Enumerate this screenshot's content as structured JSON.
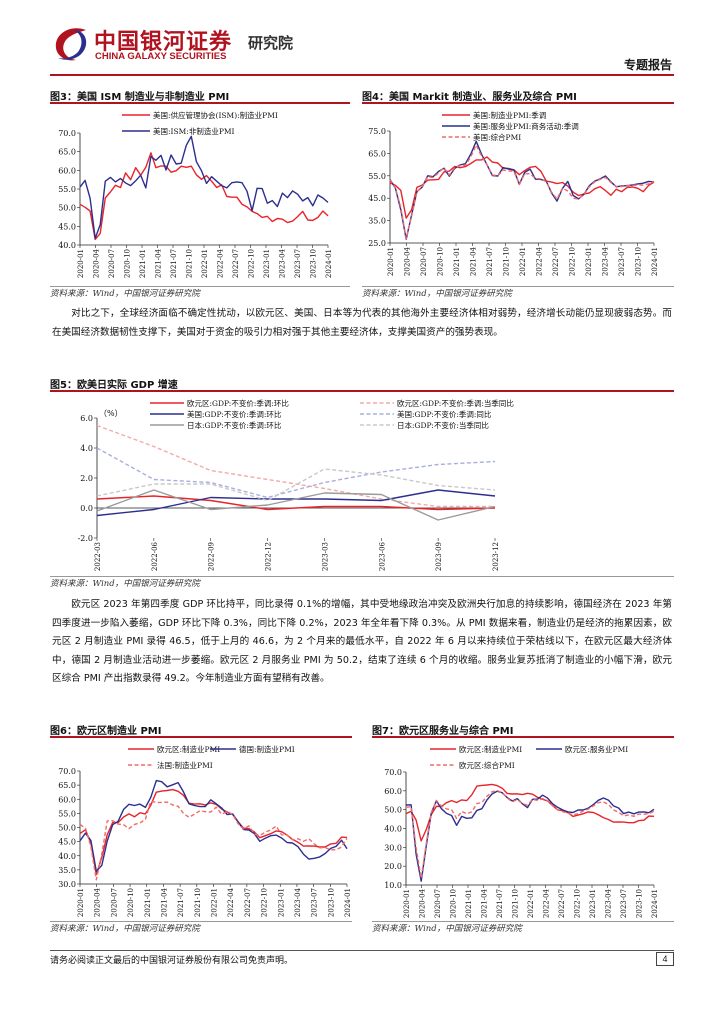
{
  "header": {
    "logo_cn": "中国银河证券",
    "logo_en": "CHINA GALAXY SECURITIES",
    "institute": "研究院",
    "report_type": "专题报告",
    "colors": {
      "brand": "#b0131f"
    }
  },
  "source_text": "资料来源：Wind，中国银河证券研究院",
  "paragraph1": "对比之下，全球经济面临不确定性扰动，以欧元区、美国、日本等为代表的其他海外主要经济体相对弱势，经济增长动能仍显现疲弱态势。而在美国经济数据韧性支撑下，美国对于资金的吸引力相对强于其他主要经济体，支撑美国资产的强势表现。",
  "paragraph2": "欧元区 2023 年第四季度 GDP 环比持平，同比录得 0.1%的增幅，其中受地缘政治冲突及欧洲央行加息的持续影响，德国经济在 2023 年第四季度进一步陷入萎缩，GDP 环比下降 0.3%，同比下降 0.2%，2023 年全年看下降 0.3%。从 PMI 数据来看，制造业仍是经济的拖累因素，欧元区 2 月制造业 PMI 录得 46.5，低于上月的 46.6，为 2 个月来的最低水平，自 2022 年 6 月以来持续位于荣枯线以下，在欧元区最大经济体中，德国 2 月制造业活动进一步萎缩。欧元区 2 月服务业 PMI 为 50.2，结束了连续 6 个月的收缩。服务业复苏抵消了制造业的小幅下滑，欧元区综合 PMI 产出指数录得 49.2。今年制造业方面有望稍有改善。",
  "footer": {
    "disclaimer": "请务必阅读正文最后的中国银河证券股份有限公司免责声明。",
    "page": "4"
  },
  "chart_data": [
    {
      "id": "fig3",
      "type": "line",
      "title": "图3：美国 ISM 制造业与非制造业 PMI",
      "ylim": [
        40,
        70
      ],
      "yticks": [
        "40.0",
        "45.0",
        "50.0",
        "55.0",
        "60.0",
        "65.0",
        "70.0"
      ],
      "xticks": [
        "2020-01",
        "2020-04",
        "2020-07",
        "2020-10",
        "2021-01",
        "2021-04",
        "2021-07",
        "2021-10",
        "2022-01",
        "2022-04",
        "2022-07",
        "2022-10",
        "2023-01",
        "2023-04",
        "2023-07",
        "2023-10",
        "2024-01"
      ],
      "n": 50,
      "series": [
        {
          "name": "美国:供应管理协会(ISM):制造业PMI",
          "color": "#e8242b",
          "dash": false,
          "values": [
            50.9,
            50.1,
            49.1,
            41.5,
            43.1,
            52.6,
            54.2,
            56.0,
            55.4,
            59.3,
            57.5,
            60.7,
            58.7,
            60.8,
            64.7,
            60.7,
            61.2,
            61.1,
            59.5,
            59.9,
            61.1,
            60.8,
            61.1,
            58.8,
            57.6,
            58.6,
            57.1,
            55.4,
            56.1,
            53.0,
            52.8,
            52.8,
            50.9,
            50.2,
            49.0,
            48.4,
            47.4,
            47.7,
            46.3,
            47.1,
            46.9,
            46.0,
            46.4,
            47.6,
            49.0,
            46.7,
            46.6,
            47.4,
            49.1,
            47.8
          ]
        },
        {
          "name": "美国:ISM:非制造业PMI",
          "color": "#2b2f8f",
          "dash": false,
          "values": [
            55.5,
            57.3,
            52.5,
            41.8,
            45.4,
            57.1,
            58.1,
            56.9,
            57.8,
            56.6,
            55.9,
            57.2,
            58.7,
            55.3,
            63.7,
            62.7,
            64.0,
            60.1,
            64.1,
            61.7,
            61.9,
            66.7,
            69.1,
            62.3,
            59.9,
            56.5,
            58.3,
            57.1,
            55.9,
            55.3,
            56.7,
            56.9,
            56.7,
            54.4,
            49.2,
            55.2,
            55.1,
            51.2,
            51.9,
            50.3,
            53.9,
            52.7,
            54.5,
            53.6,
            51.8,
            52.7,
            50.5,
            53.4,
            52.6,
            51.4
          ]
        }
      ]
    },
    {
      "id": "fig4",
      "type": "line",
      "title": "图4：美国 Markit 制造业、服务业及综合 PMI",
      "ylim": [
        25,
        75
      ],
      "yticks": [
        "25.0",
        "35.0",
        "45.0",
        "55.0",
        "65.0",
        "75.0"
      ],
      "xticks": [
        "2020-01",
        "2020-04",
        "2020-07",
        "2020-10",
        "2021-01",
        "2021-04",
        "2021-07",
        "2021-10",
        "2022-01",
        "2022-04",
        "2022-07",
        "2022-10",
        "2023-01",
        "2023-04",
        "2023-07",
        "2023-10",
        "2024-01"
      ],
      "n": 50,
      "series": [
        {
          "name": "美国:制造业PMI:季调",
          "color": "#e8242b",
          "dash": false,
          "values": [
            51.9,
            50.7,
            48.5,
            36.1,
            39.8,
            49.8,
            50.9,
            53.1,
            53.2,
            53.4,
            56.7,
            57.1,
            59.2,
            58.6,
            59.1,
            60.5,
            62.1,
            62.1,
            63.4,
            61.1,
            60.7,
            58.4,
            58.3,
            57.7,
            55.5,
            57.3,
            58.8,
            59.2,
            57.0,
            52.7,
            52.2,
            51.5,
            52.0,
            50.4,
            47.7,
            46.2,
            46.9,
            47.3,
            49.2,
            50.2,
            48.4,
            46.3,
            49.0,
            47.9,
            49.8,
            50.0,
            49.4,
            47.9,
            50.7,
            52.2
          ]
        },
        {
          "name": "美国:服务业PMI:商务活动:季调",
          "color": "#2b2f8f",
          "dash": false,
          "values": [
            53.4,
            49.4,
            39.8,
            26.7,
            37.5,
            47.9,
            50.0,
            55.0,
            54.6,
            56.9,
            58.4,
            54.8,
            58.3,
            59.8,
            60.4,
            64.7,
            70.4,
            64.6,
            59.9,
            55.1,
            54.9,
            58.7,
            58.0,
            57.6,
            51.2,
            56.5,
            58.0,
            53.5,
            53.4,
            52.7,
            47.3,
            43.7,
            49.3,
            52.5,
            46.2,
            44.7,
            46.8,
            50.6,
            52.6,
            53.6,
            54.9,
            52.3,
            50.1,
            50.5,
            50.6,
            50.9,
            51.4,
            51.7,
            52.5,
            52.3
          ]
        },
        {
          "name": "美国:综合PMI",
          "color": "#f06a6a",
          "dash": true,
          "values": [
            53.3,
            49.6,
            40.9,
            27.0,
            37.0,
            47.9,
            50.3,
            54.6,
            54.3,
            56.3,
            58.6,
            55.3,
            58.7,
            59.5,
            59.7,
            63.5,
            68.7,
            63.7,
            59.9,
            55.4,
            55.0,
            57.6,
            57.2,
            57.0,
            51.1,
            55.9,
            56.0,
            53.8,
            53.6,
            52.3,
            47.7,
            44.6,
            49.5,
            48.2,
            45.0,
            44.6,
            46.8,
            50.1,
            52.3,
            53.4,
            54.3,
            52.0,
            50.2,
            50.2,
            50.7,
            50.7,
            50.9,
            50.9,
            51.4,
            52.5
          ]
        }
      ]
    },
    {
      "id": "fig5",
      "type": "line",
      "title": "图5：欧美日实际 GDP 增速",
      "unit": "（%）",
      "ylim": [
        -2,
        6
      ],
      "yticks": [
        "-2.0",
        "0.0",
        "2.0",
        "4.0",
        "6.0"
      ],
      "xticks": [
        "2022-03",
        "2022-06",
        "2022-09",
        "2022-12",
        "2023-03",
        "2023-06",
        "2023-09",
        "2023-12"
      ],
      "series": [
        {
          "name": "欧元区:GDP:不变价:季调:环比",
          "color": "#e8242b",
          "dash": false,
          "values": [
            0.6,
            0.8,
            0.5,
            -0.1,
            0.1,
            0.1,
            -0.1,
            0.0
          ]
        },
        {
          "name": "欧元区:GDP:不变价:季调:当季同比",
          "color": "#f4a9a9",
          "dash": true,
          "values": [
            5.5,
            4.1,
            2.5,
            1.9,
            1.3,
            0.6,
            0.1,
            0.1
          ]
        },
        {
          "name": "美国:GDP:不变价:季调:环比",
          "color": "#2b2f8f",
          "dash": false,
          "values": [
            -0.5,
            -0.1,
            0.7,
            0.6,
            0.6,
            0.5,
            1.2,
            0.8
          ]
        },
        {
          "name": "美国:GDP:不变价:季调:同比",
          "color": "#a8aedf",
          "dash": true,
          "values": [
            4.0,
            1.9,
            1.7,
            0.7,
            1.7,
            2.4,
            2.9,
            3.1
          ]
        },
        {
          "name": "日本:GDP:不变价:季调:环比",
          "color": "#9a9a9a",
          "dash": false,
          "values": [
            -0.2,
            1.2,
            -0.1,
            0.2,
            1.0,
            0.9,
            -0.8,
            0.1
          ]
        },
        {
          "name": "日本:GDP:不变价:当季同比",
          "color": "#c8c8c8",
          "dash": true,
          "values": [
            0.8,
            1.6,
            1.6,
            0.5,
            2.6,
            2.2,
            1.5,
            1.2
          ]
        }
      ]
    },
    {
      "id": "fig6",
      "type": "line",
      "title": "图6：欧元区制造业 PMI",
      "ylim": [
        30,
        70
      ],
      "yticks": [
        "30.0",
        "35.0",
        "40.0",
        "45.0",
        "50.0",
        "55.0",
        "60.0",
        "65.0",
        "70.0"
      ],
      "xticks": [
        "2020-01",
        "2020-04",
        "2020-07",
        "2020-10",
        "2021-01",
        "2021-04",
        "2021-07",
        "2021-10",
        "2022-01",
        "2022-04",
        "2022-07",
        "2022-10",
        "2023-01",
        "2023-04",
        "2023-07",
        "2023-10",
        "2024-01"
      ],
      "n": 50,
      "series": [
        {
          "name": "欧元区:制造业PMI",
          "color": "#e8242b",
          "dash": false,
          "values": [
            47.9,
            49.2,
            44.5,
            33.4,
            39.4,
            47.4,
            51.8,
            51.7,
            53.7,
            54.8,
            53.8,
            55.2,
            54.8,
            57.9,
            62.5,
            62.9,
            63.1,
            63.4,
            62.8,
            61.4,
            58.6,
            58.3,
            58.4,
            58.0,
            58.7,
            58.2,
            56.5,
            55.5,
            54.6,
            52.1,
            49.8,
            49.6,
            48.4,
            46.4,
            47.1,
            47.8,
            48.8,
            48.5,
            47.3,
            45.8,
            44.8,
            43.4,
            43.5,
            43.4,
            43.1,
            43.1,
            44.2,
            44.4,
            46.6,
            46.5
          ]
        },
        {
          "name": "德国:制造业PMI",
          "color": "#2b2f8f",
          "dash": false,
          "values": [
            45.3,
            48.0,
            45.4,
            34.5,
            36.6,
            45.2,
            51.0,
            52.2,
            56.4,
            58.2,
            57.8,
            58.3,
            57.1,
            60.7,
            66.6,
            66.2,
            64.4,
            65.1,
            65.9,
            62.6,
            58.4,
            57.8,
            57.4,
            57.4,
            59.8,
            58.4,
            56.9,
            54.6,
            54.8,
            52.0,
            49.3,
            49.1,
            47.8,
            45.1,
            46.2,
            47.1,
            47.3,
            46.3,
            44.7,
            44.5,
            43.2,
            40.6,
            38.8,
            39.1,
            39.6,
            40.8,
            42.6,
            43.3,
            45.5,
            42.5
          ]
        },
        {
          "name": "法国:制造业PMI",
          "color": "#f06a6a",
          "dash": true,
          "values": [
            51.1,
            49.8,
            43.2,
            31.5,
            40.6,
            52.3,
            52.4,
            51.2,
            51.0,
            49.6,
            51.1,
            51.6,
            52.9,
            59.3,
            58.9,
            58.9,
            59.0,
            58.0,
            57.5,
            55.0,
            53.6,
            54.7,
            55.9,
            55.6,
            55.5,
            57.2,
            54.7,
            55.7,
            54.6,
            51.4,
            49.5,
            50.6,
            47.7,
            47.2,
            48.3,
            49.2,
            50.5,
            47.4,
            47.3,
            45.6,
            46.0,
            45.1,
            46.0,
            44.2,
            42.8,
            42.9,
            42.1,
            42.1,
            43.1,
            46.2
          ]
        }
      ]
    },
    {
      "id": "fig7",
      "type": "line",
      "title": "图7：欧元区服务业与综合 PMI",
      "ylim": [
        10,
        70
      ],
      "yticks": [
        "10.0",
        "20.0",
        "30.0",
        "40.0",
        "50.0",
        "60.0",
        "70.0"
      ],
      "xticks": [
        "2020-01",
        "2020-04",
        "2020-07",
        "2020-10",
        "2021-01",
        "2021-04",
        "2021-07",
        "2021-10",
        "2022-01",
        "2022-04",
        "2022-07",
        "2022-10",
        "2023-01",
        "2023-04",
        "2023-07",
        "2023-10",
        "2024-01"
      ],
      "n": 50,
      "series": [
        {
          "name": "欧元区:制造业PMI",
          "color": "#e8242b",
          "dash": false,
          "values": [
            47.9,
            49.2,
            44.5,
            33.4,
            39.4,
            47.4,
            51.8,
            51.7,
            53.7,
            54.8,
            53.8,
            55.2,
            54.8,
            57.9,
            62.5,
            62.9,
            63.1,
            63.4,
            62.8,
            61.4,
            58.6,
            58.3,
            58.4,
            58.0,
            58.7,
            58.2,
            56.5,
            55.5,
            54.6,
            52.1,
            49.8,
            49.6,
            48.4,
            46.4,
            47.1,
            47.8,
            48.8,
            48.5,
            47.3,
            45.8,
            44.8,
            43.4,
            43.5,
            43.4,
            43.1,
            43.1,
            44.2,
            44.4,
            46.6,
            46.5
          ]
        },
        {
          "name": "欧元区:服务业PMI",
          "color": "#2b2f8f",
          "dash": false,
          "values": [
            52.5,
            52.6,
            26.4,
            12.0,
            30.5,
            48.3,
            54.7,
            50.5,
            48.0,
            46.9,
            41.7,
            46.4,
            45.4,
            45.7,
            49.6,
            50.5,
            55.2,
            58.3,
            59.8,
            59.0,
            56.4,
            54.6,
            55.9,
            53.1,
            51.1,
            55.5,
            55.6,
            57.7,
            56.1,
            53.0,
            51.2,
            49.8,
            48.8,
            48.5,
            49.8,
            49.8,
            50.8,
            52.7,
            55.0,
            56.2,
            55.1,
            52.0,
            50.9,
            47.9,
            48.7,
            47.8,
            48.7,
            48.8,
            48.4,
            50.2
          ]
        },
        {
          "name": "欧元区:综合PMI",
          "color": "#f06a6a",
          "dash": true,
          "values": [
            51.3,
            51.6,
            29.7,
            13.6,
            31.9,
            48.5,
            54.9,
            51.9,
            50.4,
            50.0,
            45.3,
            49.1,
            47.8,
            48.8,
            53.2,
            53.8,
            57.1,
            59.5,
            60.2,
            59.0,
            56.2,
            54.2,
            55.4,
            53.3,
            52.3,
            55.5,
            54.9,
            55.8,
            54.8,
            52.0,
            49.9,
            48.9,
            48.1,
            47.3,
            47.8,
            49.3,
            50.3,
            52.0,
            53.7,
            54.1,
            52.8,
            49.9,
            48.6,
            46.7,
            47.2,
            46.5,
            47.6,
            47.6,
            47.9,
            49.2
          ]
        }
      ]
    }
  ]
}
